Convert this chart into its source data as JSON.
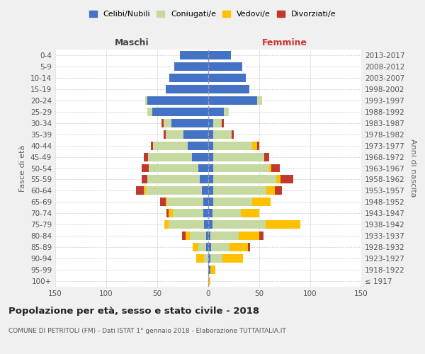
{
  "age_groups": [
    "100+",
    "95-99",
    "90-94",
    "85-89",
    "80-84",
    "75-79",
    "70-74",
    "65-69",
    "60-64",
    "55-59",
    "50-54",
    "45-49",
    "40-44",
    "35-39",
    "30-34",
    "25-29",
    "20-24",
    "15-19",
    "10-14",
    "5-9",
    "0-4"
  ],
  "birth_years": [
    "≤ 1917",
    "1918-1922",
    "1923-1927",
    "1928-1932",
    "1933-1937",
    "1938-1942",
    "1943-1947",
    "1948-1952",
    "1953-1957",
    "1958-1962",
    "1963-1967",
    "1968-1972",
    "1973-1977",
    "1978-1982",
    "1983-1987",
    "1988-1992",
    "1993-1997",
    "1998-2002",
    "2003-2007",
    "2008-2012",
    "2013-2017"
  ],
  "males": {
    "celibe": [
      0,
      0,
      0,
      2,
      2,
      4,
      5,
      5,
      6,
      8,
      10,
      16,
      20,
      24,
      36,
      55,
      60,
      42,
      38,
      33,
      28
    ],
    "coniugato": [
      0,
      0,
      4,
      8,
      16,
      35,
      30,
      35,
      55,
      52,
      48,
      43,
      34,
      18,
      8,
      5,
      2,
      0,
      0,
      0,
      0
    ],
    "vedovo": [
      0,
      0,
      8,
      5,
      4,
      4,
      4,
      2,
      2,
      0,
      0,
      0,
      0,
      0,
      0,
      0,
      0,
      0,
      0,
      0,
      0
    ],
    "divorziato": [
      0,
      0,
      0,
      0,
      4,
      0,
      2,
      5,
      8,
      5,
      7,
      4,
      2,
      2,
      2,
      0,
      0,
      0,
      0,
      0,
      0
    ]
  },
  "females": {
    "nubile": [
      0,
      2,
      2,
      3,
      2,
      4,
      4,
      5,
      5,
      5,
      5,
      5,
      5,
      5,
      5,
      15,
      48,
      40,
      37,
      33,
      22
    ],
    "coniugata": [
      0,
      0,
      12,
      18,
      28,
      52,
      28,
      38,
      52,
      62,
      55,
      50,
      38,
      18,
      8,
      5,
      5,
      0,
      0,
      0,
      0
    ],
    "vedova": [
      2,
      5,
      20,
      18,
      20,
      34,
      18,
      18,
      8,
      4,
      2,
      0,
      5,
      0,
      0,
      0,
      0,
      0,
      0,
      0,
      0
    ],
    "divorziata": [
      0,
      0,
      0,
      2,
      4,
      0,
      0,
      0,
      7,
      12,
      8,
      5,
      2,
      2,
      2,
      0,
      0,
      0,
      0,
      0,
      0
    ]
  },
  "colors": {
    "celibe": "#4472c4",
    "coniugato": "#c5d9a0",
    "vedovo": "#ffc000",
    "divorziato": "#c0392b"
  },
  "title": "Popolazione per età, sesso e stato civile - 2018",
  "subtitle": "COMUNE DI PETRITOLI (FM) - Dati ISTAT 1° gennaio 2018 - Elaborazione TUTTAITALIA.IT",
  "ylabel_left": "Fasce di età",
  "ylabel_right": "Anni di nascita",
  "xlabel_left": "Maschi",
  "xlabel_right": "Femmine",
  "xlim": 150,
  "bg_color": "#f0f0f0",
  "plot_bg": "#ffffff"
}
